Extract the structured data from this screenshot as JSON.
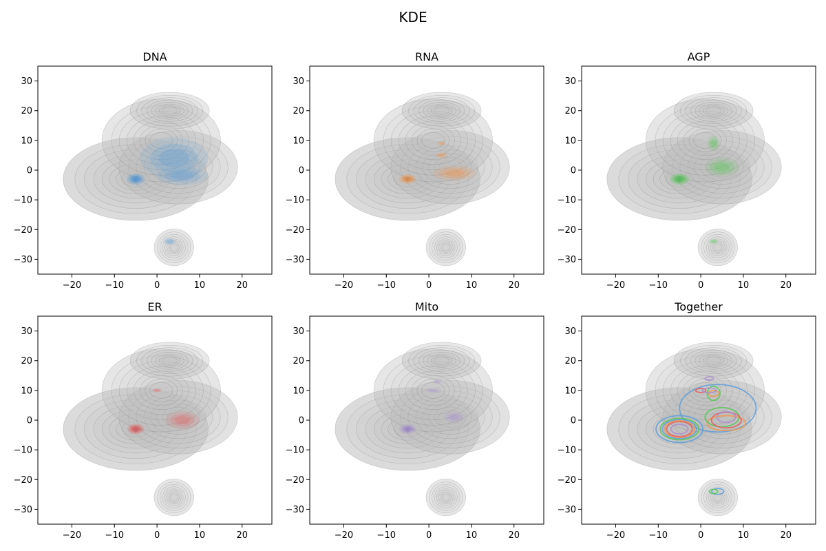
{
  "figure": {
    "title": "KDE"
  },
  "colors": {
    "DNA": "#5f9fd8",
    "RNA": "#f0954c",
    "AGP": "#5cc75c",
    "ER": "#e56060",
    "Mito": "#a98fce",
    "Together_lines": [
      "#4f8fc4",
      "#f0954c",
      "#4caf50",
      "#d64545",
      "#9467bd"
    ],
    "background": "#c8c8c8"
  },
  "chart_data": [
    {
      "type": "kde-contour",
      "title": "DNA",
      "xlim": [
        -28,
        27
      ],
      "ylim": [
        -35,
        35
      ],
      "xticks": [
        -20,
        -10,
        0,
        10,
        20
      ],
      "yticks": [
        -30,
        -20,
        -10,
        0,
        10,
        20,
        30
      ],
      "background_blobs": [
        {
          "cx": -5,
          "cy": -3,
          "rx": 11,
          "ry": 9,
          "w": 1.0
        },
        {
          "cx": 5,
          "cy": 1,
          "rx": 9,
          "ry": 8,
          "w": 0.6
        },
        {
          "cx": 1,
          "cy": 10,
          "rx": 9,
          "ry": 9,
          "w": 0.4
        },
        {
          "cx": 3,
          "cy": 20,
          "rx": 6,
          "ry": 4,
          "w": 0.25
        },
        {
          "cx": 4,
          "cy": -26,
          "rx": 3,
          "ry": 4,
          "w": 0.35
        }
      ],
      "foreground_blobs": [
        {
          "cx": -5,
          "cy": -3,
          "rx": 2.2,
          "ry": 2.0,
          "w": 1.0
        },
        {
          "cx": 4,
          "cy": 4,
          "rx": 8,
          "ry": 7,
          "w": 0.35
        },
        {
          "cx": 6,
          "cy": -2,
          "rx": 6,
          "ry": 3,
          "w": 0.3
        },
        {
          "cx": 3,
          "cy": -24,
          "rx": 1.5,
          "ry": 1.2,
          "w": 0.25
        }
      ],
      "series_color_key": "DNA"
    },
    {
      "type": "kde-contour",
      "title": "RNA",
      "xlim": [
        -28,
        27
      ],
      "ylim": [
        -35,
        35
      ],
      "xticks": [
        -20,
        -10,
        0,
        10,
        20
      ],
      "yticks": [
        -30,
        -20,
        -10,
        0,
        10,
        20,
        30
      ],
      "foreground_blobs": [
        {
          "cx": -5,
          "cy": -3,
          "rx": 2.0,
          "ry": 1.6,
          "w": 1.0
        },
        {
          "cx": 6,
          "cy": -1,
          "rx": 5,
          "ry": 2.5,
          "w": 0.35
        },
        {
          "cx": 3,
          "cy": 5,
          "rx": 1.5,
          "ry": 1.0,
          "w": 0.3
        },
        {
          "cx": 3,
          "cy": 9,
          "rx": 1.0,
          "ry": 0.8,
          "w": 0.25
        }
      ],
      "series_color_key": "RNA"
    },
    {
      "type": "kde-contour",
      "title": "AGP",
      "xlim": [
        -28,
        27
      ],
      "ylim": [
        -35,
        35
      ],
      "xticks": [
        -20,
        -10,
        0,
        10,
        20
      ],
      "yticks": [
        -30,
        -20,
        -10,
        0,
        10,
        20,
        30
      ],
      "foreground_blobs": [
        {
          "cx": -5,
          "cy": -3,
          "rx": 2.3,
          "ry": 2.0,
          "w": 1.0
        },
        {
          "cx": 5,
          "cy": 1,
          "rx": 4,
          "ry": 3,
          "w": 0.4
        },
        {
          "cx": 3,
          "cy": 9,
          "rx": 1.5,
          "ry": 2.5,
          "w": 0.35
        },
        {
          "cx": 3,
          "cy": -24,
          "rx": 1.2,
          "ry": 0.9,
          "w": 0.3
        }
      ],
      "series_color_key": "AGP"
    },
    {
      "type": "kde-contour",
      "title": "ER",
      "xlim": [
        -28,
        27
      ],
      "ylim": [
        -35,
        35
      ],
      "xticks": [
        -20,
        -10,
        0,
        10,
        20
      ],
      "yticks": [
        -30,
        -20,
        -10,
        0,
        10,
        20,
        30
      ],
      "foreground_blobs": [
        {
          "cx": -5,
          "cy": -3,
          "rx": 2.0,
          "ry": 1.8,
          "w": 1.0
        },
        {
          "cx": 6,
          "cy": 0,
          "rx": 4,
          "ry": 3,
          "w": 0.3
        },
        {
          "cx": 0,
          "cy": 10,
          "rx": 1.2,
          "ry": 0.7,
          "w": 0.2
        }
      ],
      "series_color_key": "ER"
    },
    {
      "type": "kde-contour",
      "title": "Mito",
      "xlim": [
        -28,
        27
      ],
      "ylim": [
        -35,
        35
      ],
      "xticks": [
        -20,
        -10,
        0,
        10,
        20
      ],
      "yticks": [
        -30,
        -20,
        -10,
        0,
        10,
        20,
        30
      ],
      "foreground_blobs": [
        {
          "cx": -5,
          "cy": -3,
          "rx": 2.0,
          "ry": 1.7,
          "w": 1.0
        },
        {
          "cx": 6,
          "cy": 1,
          "rx": 2.5,
          "ry": 2.0,
          "w": 0.25
        },
        {
          "cx": 2,
          "cy": 13,
          "rx": 1.2,
          "ry": 0.7,
          "w": 0.2
        },
        {
          "cx": 1,
          "cy": 10,
          "rx": 2.0,
          "ry": 0.8,
          "w": 0.15
        }
      ],
      "series_color_key": "Mito"
    },
    {
      "type": "kde-contour",
      "title": "Together",
      "xlim": [
        -28,
        27
      ],
      "ylim": [
        -35,
        35
      ],
      "xticks": [
        -20,
        -10,
        0,
        10,
        20
      ],
      "yticks": [
        -30,
        -20,
        -10,
        0,
        10,
        20,
        30
      ],
      "line_sets": [
        {
          "key": "DNA",
          "ellipses": [
            {
              "cx": -5,
              "cy": -3,
              "rx": 5.5,
              "ry": 4.5
            },
            {
              "cx": -5,
              "cy": -3,
              "rx": 4.0,
              "ry": 3.2
            },
            {
              "cx": 4,
              "cy": 4,
              "rx": 9,
              "ry": 8
            },
            {
              "cx": 4,
              "cy": -24,
              "rx": 1.4,
              "ry": 1.0
            }
          ]
        },
        {
          "key": "RNA",
          "ellipses": [
            {
              "cx": -5,
              "cy": -3,
              "rx": 3.5,
              "ry": 2.8
            },
            {
              "cx": 6,
              "cy": -1,
              "rx": 4.5,
              "ry": 2.5
            },
            {
              "cx": 3,
              "cy": 9,
              "rx": 1.2,
              "ry": 1.0
            }
          ]
        },
        {
          "key": "AGP",
          "ellipses": [
            {
              "cx": -5,
              "cy": -3,
              "rx": 4.5,
              "ry": 3.6
            },
            {
              "cx": 5,
              "cy": 1,
              "rx": 4.0,
              "ry": 3.2
            },
            {
              "cx": 3,
              "cy": 9,
              "rx": 1.5,
              "ry": 2.4
            },
            {
              "cx": 3,
              "cy": -24,
              "rx": 1.0,
              "ry": 0.7
            }
          ]
        },
        {
          "key": "ER",
          "ellipses": [
            {
              "cx": -5,
              "cy": -3,
              "rx": 3.0,
              "ry": 2.5
            },
            {
              "cx": 6,
              "cy": 0,
              "rx": 3.5,
              "ry": 2.6
            },
            {
              "cx": 0,
              "cy": 10,
              "rx": 1.2,
              "ry": 0.7
            }
          ]
        },
        {
          "key": "Mito",
          "ellipses": [
            {
              "cx": -5,
              "cy": -3,
              "rx": 2.0,
              "ry": 1.6
            },
            {
              "cx": 6,
              "cy": 1,
              "rx": 2.2,
              "ry": 1.8
            },
            {
              "cx": 2,
              "cy": 14,
              "rx": 1.0,
              "ry": 0.6
            },
            {
              "cx": 2,
              "cy": 10,
              "rx": 1.6,
              "ry": 0.8
            }
          ]
        }
      ]
    }
  ]
}
